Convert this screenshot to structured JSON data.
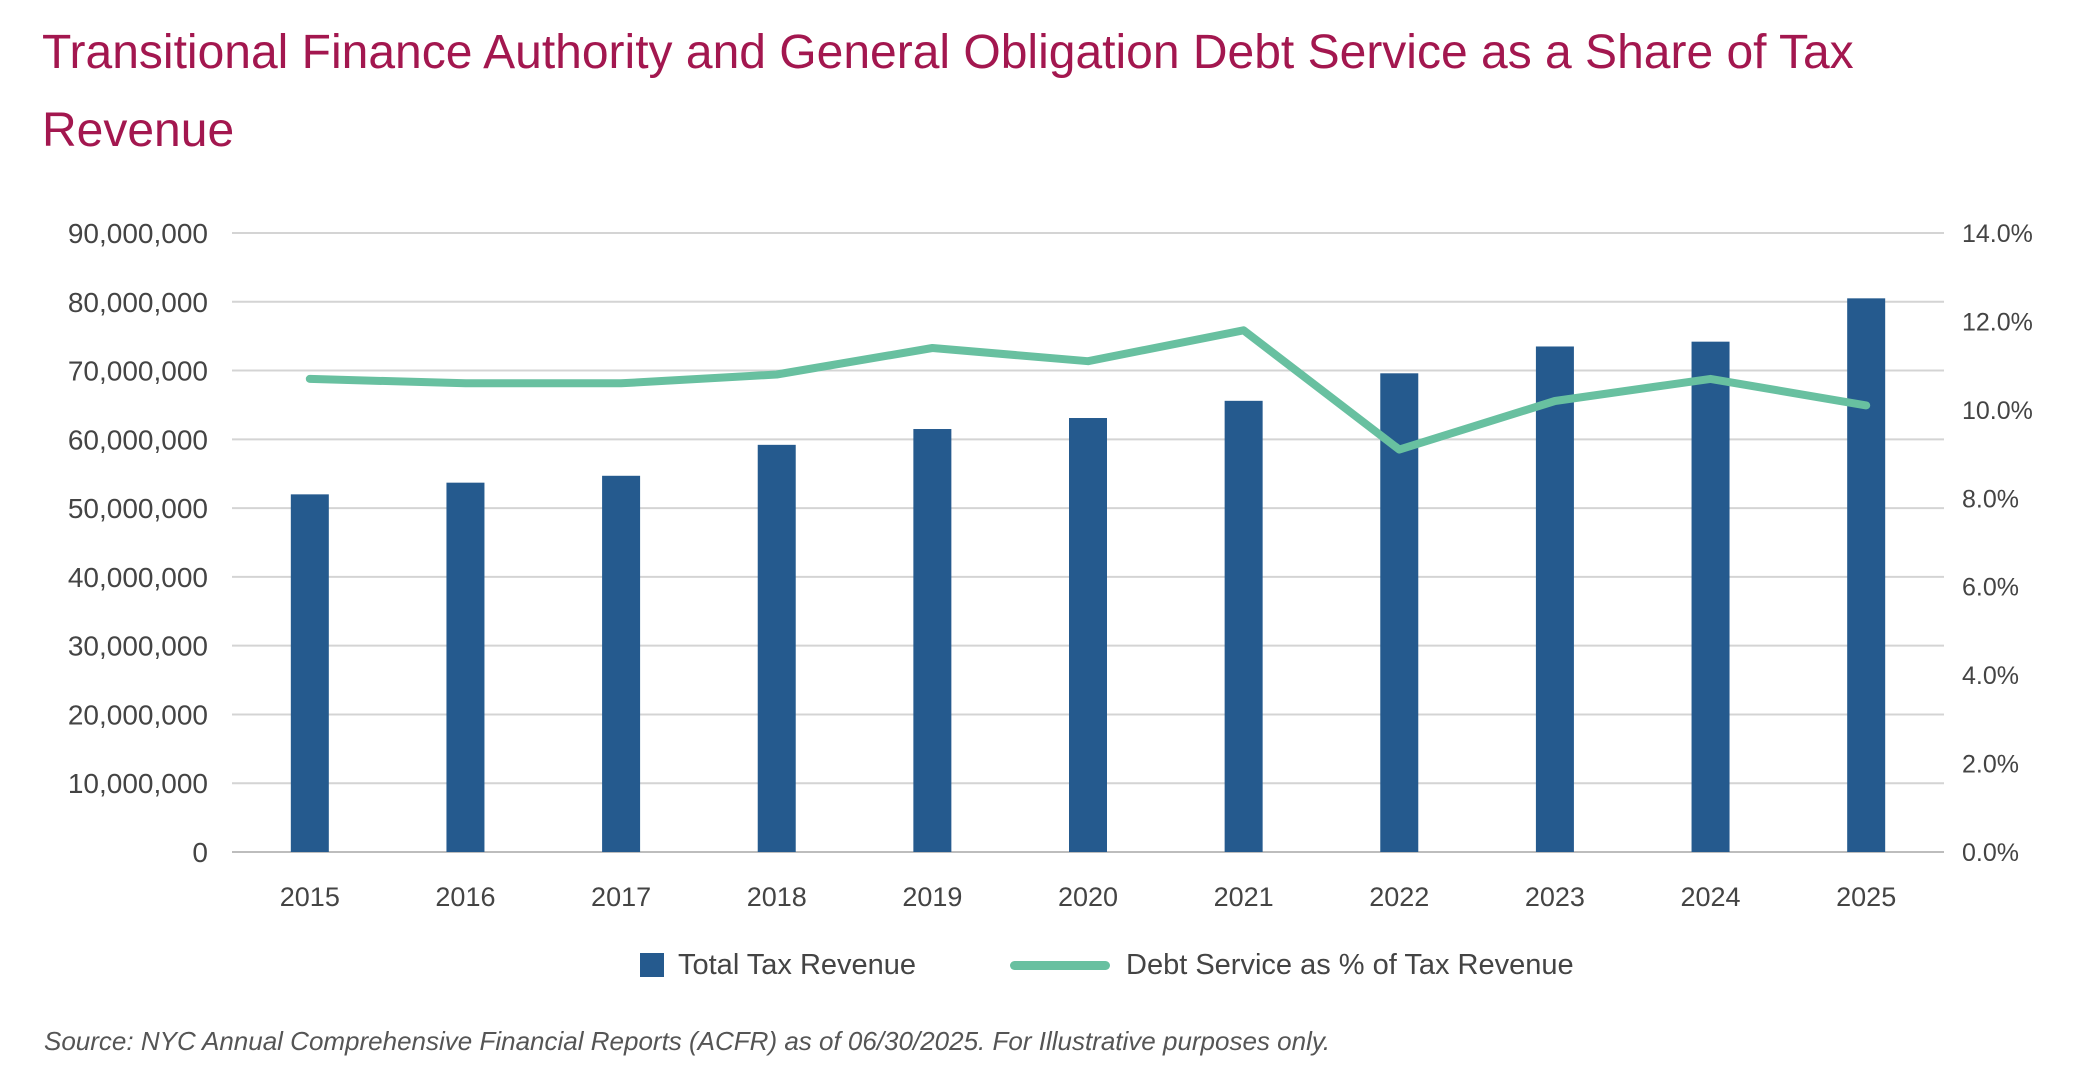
{
  "title": "Transitional Finance Authority and General Obligation Debt Service as a Share of Tax Revenue",
  "source_note": "Source: NYC Annual Comprehensive Financial Reports (ACFR) as of 06/30/2025. For Illustrative purposes only.",
  "colors": {
    "title": "#a3174f",
    "bar": "#255a8e",
    "line": "#68c0a0",
    "grid": "#d4d4d4",
    "axis_text": "#444444"
  },
  "chart_data": {
    "type": "bar",
    "title": "Transitional Finance Authority and General Obligation Debt Service as a Share of Tax Revenue",
    "categories": [
      "2015",
      "2016",
      "2017",
      "2018",
      "2019",
      "2020",
      "2021",
      "2022",
      "2023",
      "2024",
      "2025"
    ],
    "series": [
      {
        "name": "Total Tax Revenue",
        "type": "bar",
        "axis": "left",
        "values": [
          52000000,
          53700000,
          54700000,
          59200000,
          61500000,
          63100000,
          65600000,
          69600000,
          73500000,
          74200000,
          80500000
        ]
      },
      {
        "name": "Debt Service as % of Tax Revenue",
        "type": "line",
        "axis": "right",
        "values": [
          10.7,
          10.6,
          10.6,
          10.8,
          11.4,
          11.1,
          11.8,
          9.1,
          10.2,
          10.7,
          10.1
        ]
      }
    ],
    "left_axis": {
      "ylim": [
        0,
        90000000
      ],
      "ticks": [
        "0",
        "10,000,000",
        "20,000,000",
        "30,000,000",
        "40,000,000",
        "50,000,000",
        "60,000,000",
        "70,000,000",
        "80,000,000",
        "90,000,000"
      ]
    },
    "right_axis": {
      "ylim": [
        0,
        14
      ],
      "ticks": [
        "0.0%",
        "2.0%",
        "4.0%",
        "6.0%",
        "8.0%",
        "10.0%",
        "12.0%",
        "14.0%"
      ]
    },
    "grid": true,
    "legend_position": "bottom"
  }
}
